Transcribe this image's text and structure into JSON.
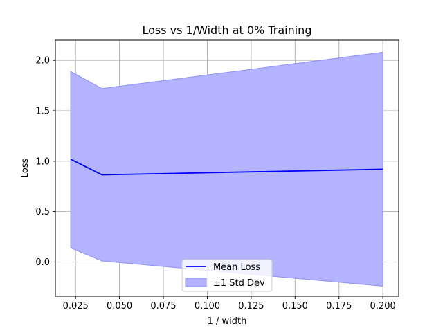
{
  "chart_data": {
    "type": "line",
    "title": "Loss vs 1/Width at 0% Training",
    "xlabel": "1 / width",
    "ylabel": "Loss",
    "xlim": [
      0.0135,
      0.209
    ],
    "ylim": [
      -0.34,
      2.2
    ],
    "grid": true,
    "legend_position": "lower-center",
    "xticks": [
      0.025,
      0.05,
      0.075,
      0.1,
      0.125,
      0.15,
      0.175,
      0.2
    ],
    "xtick_labels": [
      "0.025",
      "0.050",
      "0.075",
      "0.100",
      "0.125",
      "0.150",
      "0.175",
      "0.200"
    ],
    "yticks": [
      0.0,
      0.5,
      1.0,
      1.5,
      2.0
    ],
    "ytick_labels": [
      "0.0",
      "0.5",
      "1.0",
      "1.5",
      "2.0"
    ],
    "x": [
      0.0222,
      0.04,
      0.2
    ],
    "series": [
      {
        "name": "Mean Loss",
        "kind": "line",
        "color": "#0000ff",
        "values": [
          1.02,
          0.865,
          0.92
        ]
      },
      {
        "name": "±1 Std Dev",
        "kind": "band",
        "color": "#0000ff",
        "fill_color": "#b3b3ff",
        "upper": [
          1.89,
          1.72,
          2.08
        ],
        "lower": [
          0.14,
          0.01,
          -0.24
        ]
      }
    ]
  }
}
